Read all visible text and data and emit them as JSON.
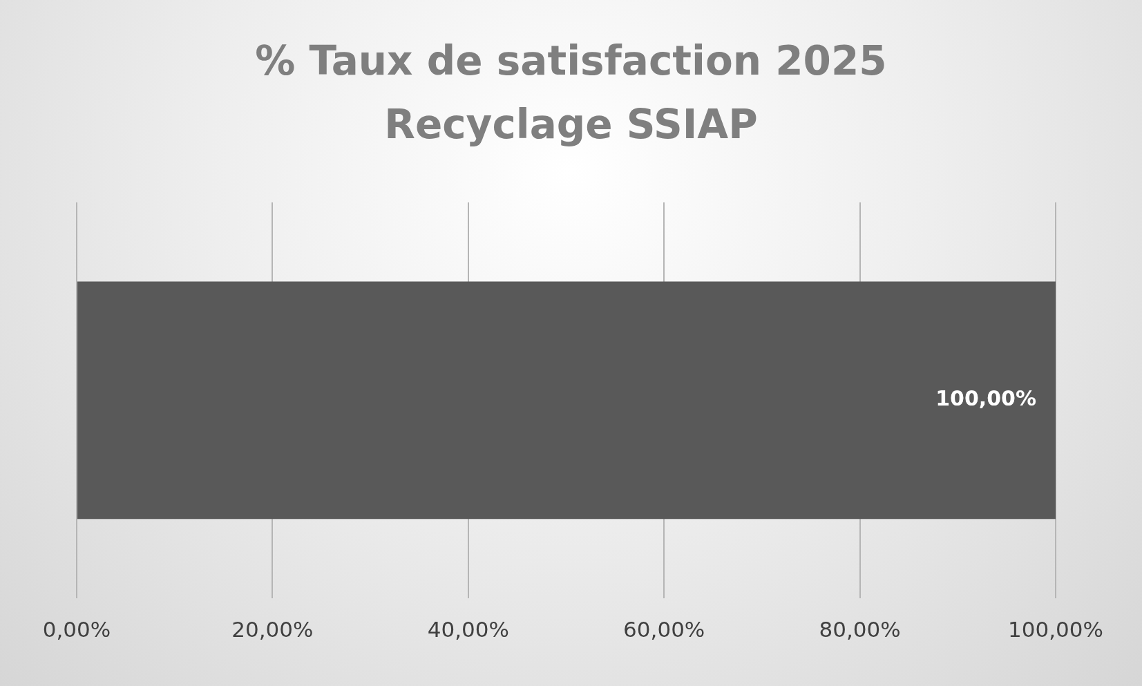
{
  "chart_data": {
    "type": "bar",
    "orientation": "horizontal",
    "title": "% Taux de satisfaction 2025 Recyclage SSIAP",
    "categories": [
      null
    ],
    "values": [
      100
    ],
    "color": "#595959",
    "value_labels": [
      "100,00%"
    ],
    "xlim": [
      0,
      100
    ],
    "xticks": [
      {
        "value": 0,
        "label": "0,00%"
      },
      {
        "value": 20,
        "label": "20,00%"
      },
      {
        "value": 40,
        "label": "40,00%"
      },
      {
        "value": 60,
        "label": "60,00%"
      },
      {
        "value": 80,
        "label": "80,00%"
      },
      {
        "value": 100,
        "label": "100,00%"
      }
    ],
    "grid": "x",
    "legend": false,
    "tick_labels": "x"
  }
}
